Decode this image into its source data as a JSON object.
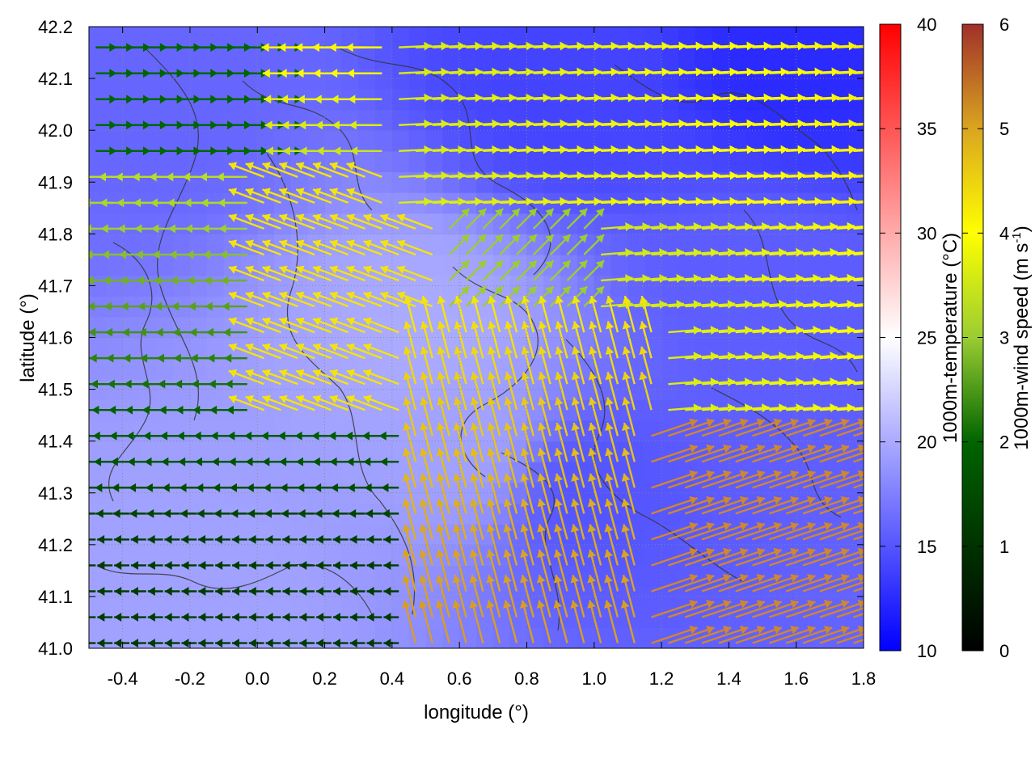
{
  "chart_data": {
    "type": "heatmap",
    "title": "",
    "xlabel": "longitude (°)",
    "ylabel": "latitude (°)",
    "xlim": [
      -0.5,
      1.8
    ],
    "ylim": [
      41.0,
      42.2
    ],
    "xticks": [
      -0.4,
      -0.2,
      0.0,
      0.2,
      0.4,
      0.6,
      0.8,
      1.0,
      1.2,
      1.4,
      1.6,
      1.8
    ],
    "xtick_labels": [
      "-0.4",
      "-0.2",
      "0.0",
      "0.2",
      "0.4",
      "0.6",
      "0.8",
      "1.0",
      "1.2",
      "1.4",
      "1.6",
      "1.8"
    ],
    "yticks": [
      41.0,
      41.1,
      41.2,
      41.3,
      41.4,
      41.5,
      41.6,
      41.7,
      41.8,
      41.9,
      42.0,
      42.1,
      42.2
    ],
    "ytick_labels": [
      "41.0",
      "41.1",
      "41.2",
      "41.3",
      "41.4",
      "41.5",
      "41.6",
      "41.7",
      "41.8",
      "41.9",
      "42.0",
      "42.1",
      "42.2"
    ],
    "grid": true,
    "temperature_colorbar": {
      "label": "1000m-temperature (°C)",
      "range": [
        10,
        40
      ],
      "ticks": [
        "10",
        "15",
        "20",
        "25",
        "30",
        "35",
        "40"
      ],
      "colors": [
        "#0000ff",
        "#ffffff",
        "#ff0000"
      ]
    },
    "wind_colorbar": {
      "label": "1000m-wind speed (m s",
      "label_superscript": "-1",
      "label_suffix": ")",
      "range": [
        0,
        6
      ],
      "ticks": [
        "0",
        "1",
        "2",
        "3",
        "4",
        "5",
        "6"
      ],
      "colors": [
        "#000000",
        "#006400",
        "#9acd32",
        "#ffff00",
        "#daa520",
        "#cd7f32",
        "#a0302a"
      ]
    },
    "temperature_field": {
      "approx_range": [
        14,
        22
      ],
      "description_values": [
        {
          "lon": -0.2,
          "lat": 41.1,
          "t": 19.5
        },
        {
          "lon": 0.5,
          "lat": 41.6,
          "t": 20.0
        },
        {
          "lon": 0.6,
          "lat": 41.4,
          "t": 19.5
        },
        {
          "lon": 1.0,
          "lat": 41.3,
          "t": 15.0
        },
        {
          "lon": 1.6,
          "lat": 42.15,
          "t": 12.5
        },
        {
          "lon": 0.9,
          "lat": 42.1,
          "t": 14.0
        },
        {
          "lon": -0.3,
          "lat": 42.1,
          "t": 16.0
        },
        {
          "lon": 1.5,
          "lat": 41.7,
          "t": 15.5
        }
      ]
    },
    "wind_field_regions": [
      {
        "region": "north-east",
        "direction": "east",
        "speed": 4.0
      },
      {
        "region": "south-east",
        "direction": "north-east",
        "speed": 6.0
      },
      {
        "region": "west",
        "direction": "west",
        "speed": 2.5
      },
      {
        "region": "center",
        "direction": "north-west",
        "speed": 4.5
      }
    ]
  }
}
